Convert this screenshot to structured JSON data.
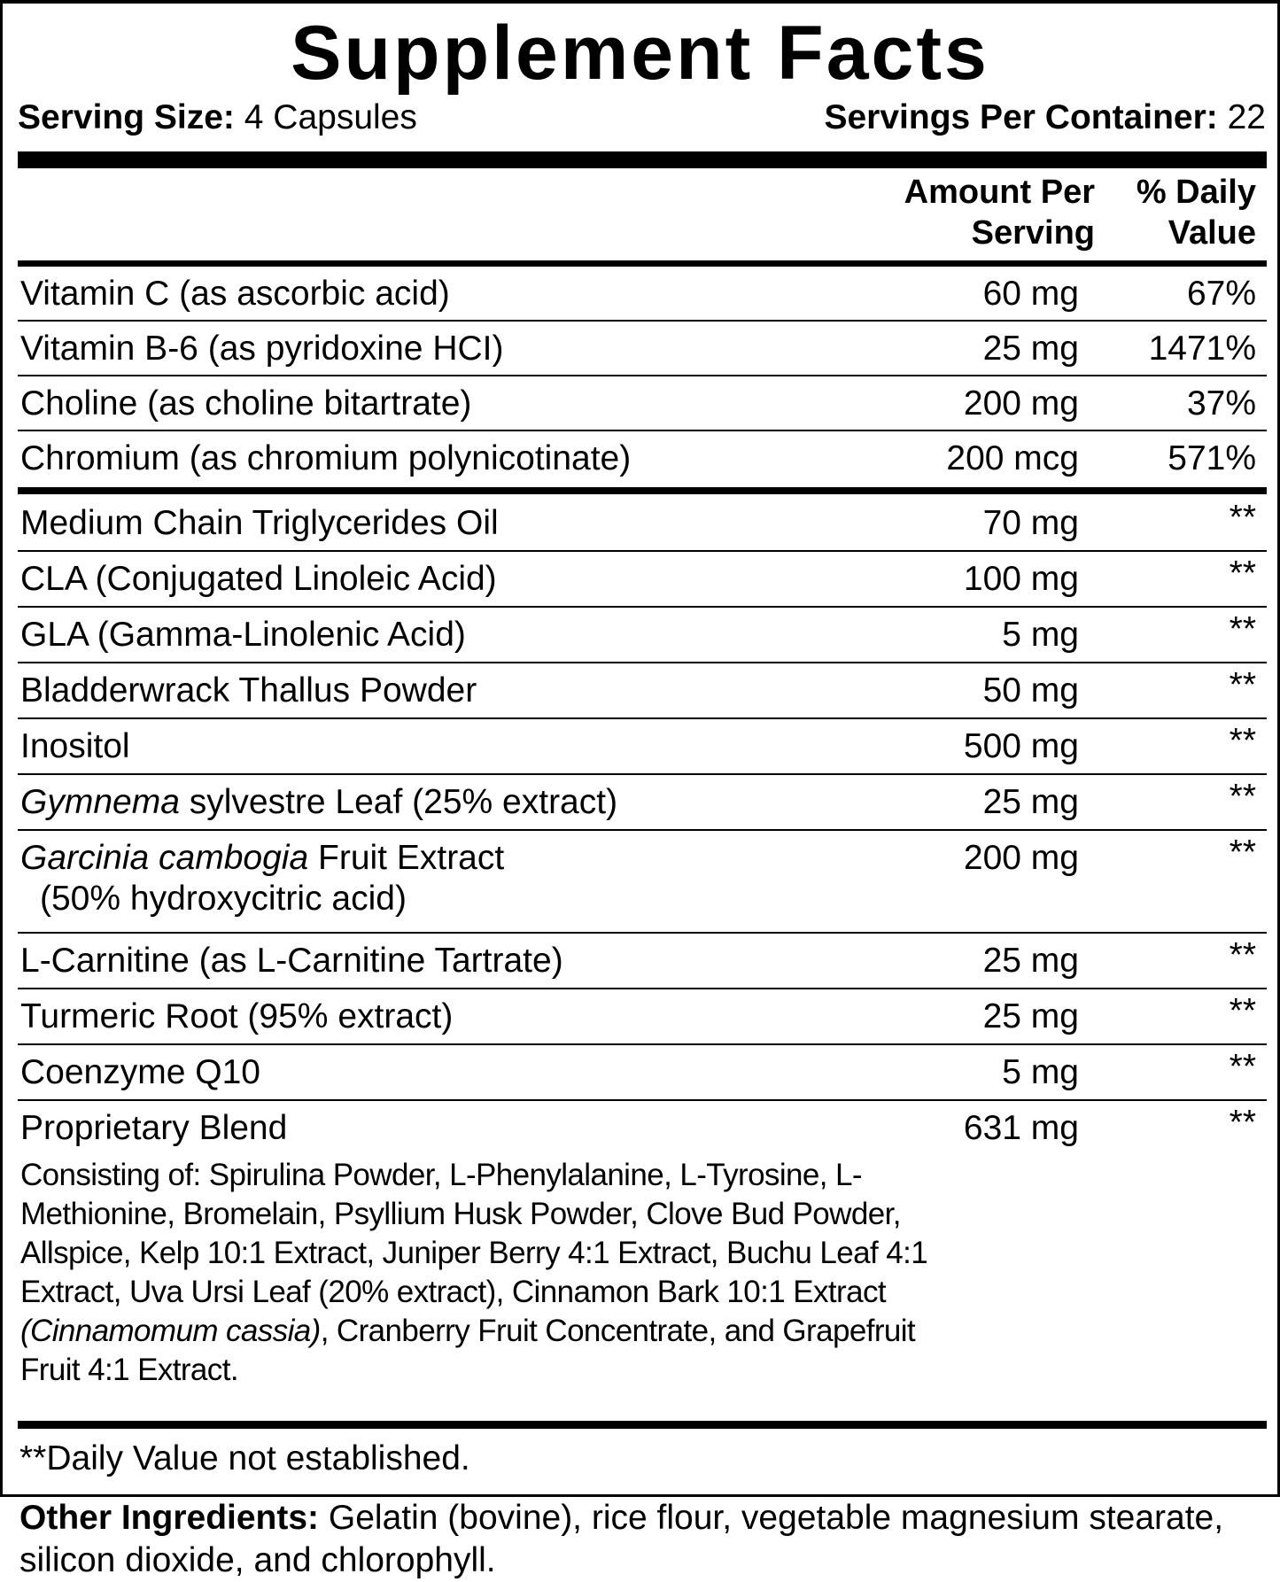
{
  "title": "Supplement Facts",
  "serving_size": {
    "label": "Serving Size:",
    "value": " 4 Capsules"
  },
  "servings_per_container": {
    "label": "Servings Per Container:",
    "value": " 22"
  },
  "columns": {
    "amount_line1": "Amount Per",
    "amount_line2": "Serving",
    "dv_line1": "% Daily",
    "dv_line2": "Value"
  },
  "vitamins": [
    {
      "name": [
        {
          "t": "Vitamin C (as ascorbic acid)"
        }
      ],
      "amount": "60 mg",
      "dv": "67%"
    },
    {
      "name": [
        {
          "t": "Vitamin B-6 (as pyridoxine HCI)"
        }
      ],
      "amount": "25 mg",
      "dv": "1471%"
    },
    {
      "name": [
        {
          "t": "Choline (as choline bitartrate)"
        }
      ],
      "amount": "200 mg",
      "dv": "37%"
    },
    {
      "name": [
        {
          "t": "Chromium (as chromium polynicotinate)"
        }
      ],
      "amount": "200 mcg",
      "dv": "571%"
    }
  ],
  "others": [
    {
      "name": [
        {
          "t": "Medium Chain Triglycerides Oil"
        }
      ],
      "amount": "70 mg",
      "dv": "**"
    },
    {
      "name": [
        {
          "t": "CLA (Conjugated Linoleic Acid)"
        }
      ],
      "amount": "100 mg",
      "dv": "**"
    },
    {
      "name": [
        {
          "t": "GLA (Gamma-Linolenic Acid)"
        }
      ],
      "amount": "5 mg",
      "dv": "**"
    },
    {
      "name": [
        {
          "t": "Bladderwrack Thallus Powder"
        }
      ],
      "amount": "50 mg",
      "dv": "**"
    },
    {
      "name": [
        {
          "t": "Inositol"
        }
      ],
      "amount": "500 mg",
      "dv": "**"
    },
    {
      "name": [
        {
          "t": "Gymnema",
          "i": true
        },
        {
          "t": " sylvestre Leaf (25% extract)"
        }
      ],
      "amount": "25 mg",
      "dv": "**"
    },
    {
      "name": [
        {
          "t": "Garcinia cambogia",
          "i": true
        },
        {
          "t": " Fruit Extract"
        }
      ],
      "sub": "(50% hydroxycitric acid)",
      "amount": "200 mg",
      "dv": "**"
    },
    {
      "name": [
        {
          "t": "L-Carnitine (as L-Carnitine Tartrate)"
        }
      ],
      "amount": "25 mg",
      "dv": "**"
    },
    {
      "name": [
        {
          "t": "Turmeric Root (95% extract)"
        }
      ],
      "amount": "25 mg",
      "dv": "**"
    },
    {
      "name": [
        {
          "t": "Coenzyme Q10"
        }
      ],
      "amount": "5 mg",
      "dv": "**"
    },
    {
      "name": [
        {
          "t": "Proprietary Blend"
        }
      ],
      "amount": "631 mg",
      "dv": "**",
      "consisting": [
        {
          "t": "Consisting of: Spirulina Powder, L-Phenylalanine, L-Tyrosine, L-Methionine, Bromelain, Psyllium Husk Powder, Clove Bud Powder, Allspice, Kelp 10:1 Extract, Juniper Berry 4:1 Extract, Buchu Leaf 4:1 Extract, Uva Ursi Leaf (20% extract), Cinnamon Bark 10:1 Extract "
        },
        {
          "t": "(Cinnamomum cassia)",
          "i": true
        },
        {
          "t": ", Cranberry Fruit Concentrate, and Grapefruit Fruit 4:1 Extract."
        }
      ]
    }
  ],
  "footnote": "**Daily Value not established.",
  "other_ingredients": {
    "label": "Other Ingredients:",
    "value": " Gelatin (bovine), rice flour, vegetable magnesium stearate, silicon dioxide, and chlorophyll."
  }
}
